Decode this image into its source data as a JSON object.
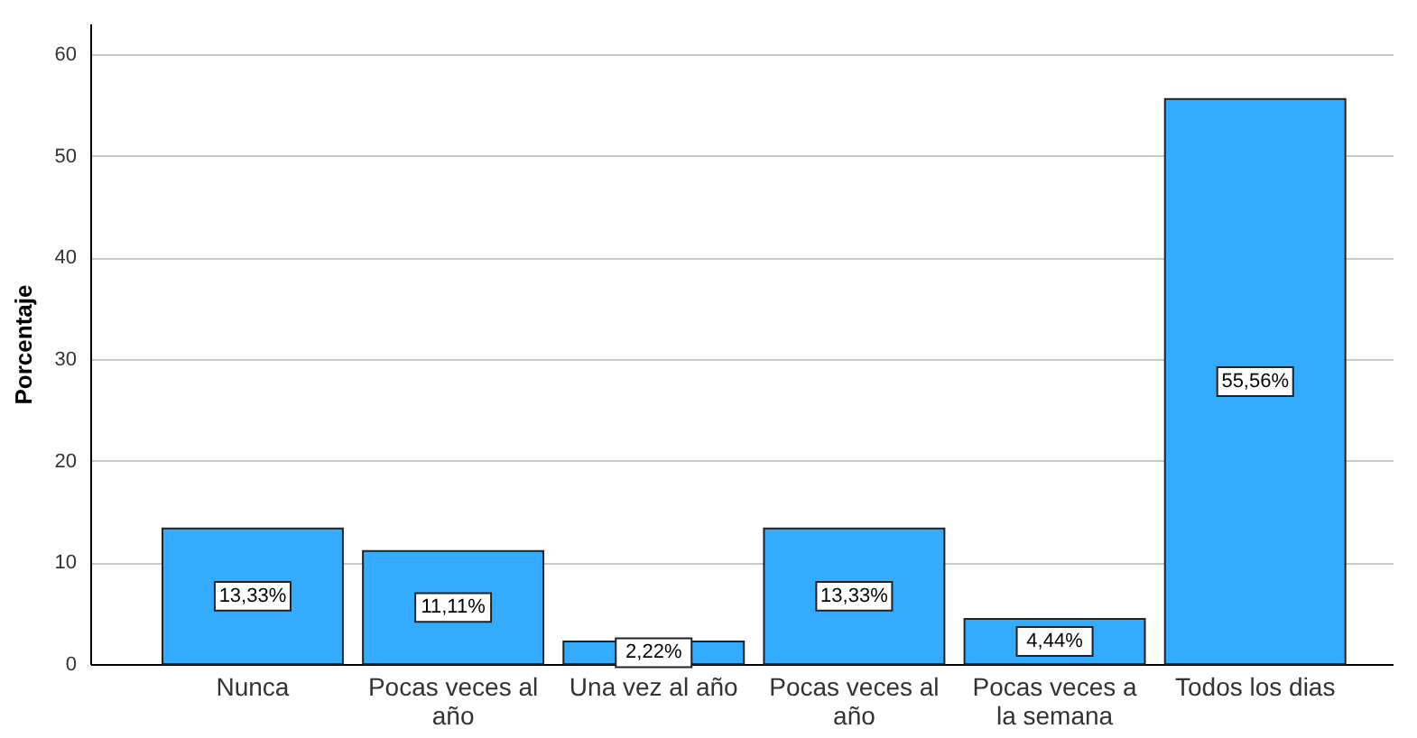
{
  "chart_data": {
    "type": "bar",
    "ylabel": "Porcentaje",
    "categories": [
      "Nunca",
      "Pocas veces al año",
      "Una vez al año",
      "Pocas veces al año",
      "Pocas veces a la semana",
      "Todos los dias"
    ],
    "values": [
      13.33,
      11.11,
      2.22,
      13.33,
      4.44,
      55.56
    ],
    "value_labels": [
      "13,33%",
      "11,11%",
      "2,22%",
      "13,33%",
      "4,44%",
      "55,56%"
    ],
    "color": "#33acff",
    "ylim": [
      0,
      63
    ],
    "yticks": [
      0,
      10,
      20,
      30,
      40,
      50,
      60
    ],
    "grid": "y"
  }
}
